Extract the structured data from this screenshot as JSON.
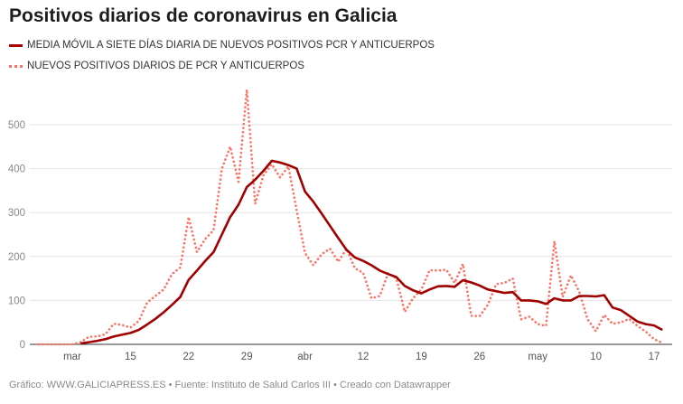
{
  "chart_data": {
    "type": "line",
    "title": "Positivos diarios de coronavirus en Galicia",
    "ylim": [
      0,
      580
    ],
    "yticks": [
      0,
      100,
      200,
      300,
      400,
      500
    ],
    "grid": true,
    "legend_position": "top-left",
    "xticks": [
      {
        "date": "03-08",
        "label": "mar"
      },
      {
        "date": "03-15",
        "label": "15"
      },
      {
        "date": "03-22",
        "label": "22"
      },
      {
        "date": "03-29",
        "label": "29"
      },
      {
        "date": "04-05",
        "label": "abr"
      },
      {
        "date": "04-12",
        "label": "12"
      },
      {
        "date": "04-19",
        "label": "19"
      },
      {
        "date": "04-26",
        "label": "26"
      },
      {
        "date": "05-03",
        "label": "may"
      },
      {
        "date": "05-10",
        "label": "10"
      },
      {
        "date": "05-17",
        "label": "17"
      }
    ],
    "series": [
      {
        "name": "MEDIA MÓVIL A SIETE DÍAS DIARIA DE NUEVOS POSITIVOS PCR Y ANTICUERPOS",
        "color": "#a00000",
        "style": "solid",
        "start": "03-09",
        "values": [
          2,
          5,
          8,
          12,
          18,
          22,
          26,
          33,
          45,
          58,
          73,
          90,
          108,
          147,
          168,
          190,
          210,
          250,
          290,
          318,
          358,
          375,
          395,
          418,
          414,
          408,
          400,
          348,
          325,
          298,
          270,
          242,
          215,
          198,
          190,
          180,
          168,
          160,
          153,
          133,
          123,
          116,
          125,
          132,
          133,
          131,
          146,
          141,
          134,
          125,
          121,
          117,
          119,
          100,
          100,
          98,
          92,
          105,
          100,
          100,
          110,
          110,
          109,
          112,
          84,
          78,
          65,
          52,
          46,
          43,
          33
        ]
      },
      {
        "name": "NUEVOS POSITIVOS DIARIOS DE PCR Y ANTICUERPOS",
        "color": "#ff7060",
        "style": "dotted",
        "start": "03-04",
        "values": [
          0,
          0,
          0,
          0,
          0,
          5,
          17,
          18,
          23,
          47,
          44,
          38,
          53,
          95,
          110,
          125,
          160,
          175,
          290,
          210,
          240,
          260,
          400,
          450,
          370,
          580,
          320,
          385,
          410,
          380,
          405,
          305,
          208,
          180,
          205,
          218,
          188,
          218,
          173,
          163,
          105,
          110,
          162,
          150,
          74,
          105,
          125,
          169,
          168,
          170,
          140,
          183,
          65,
          64,
          90,
          137,
          140,
          150,
          57,
          63,
          46,
          42,
          235,
          108,
          157,
          120,
          57,
          30,
          67,
          47,
          50,
          58,
          42,
          29,
          12,
          3
        ]
      }
    ]
  },
  "footer": "Gráfico: WWW.GALICIAPRESS.ES • Fuente: Instituto de Salud Carlos III • Creado con Datawrapper"
}
